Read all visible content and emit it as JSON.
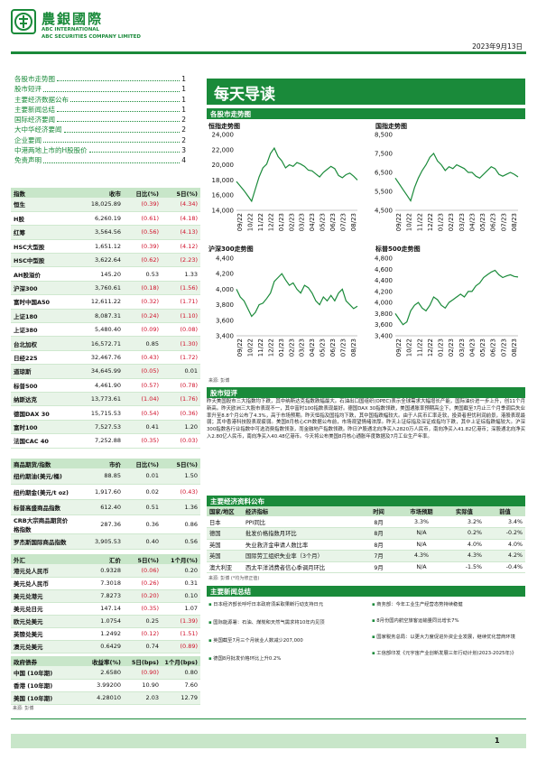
{
  "header": {
    "brand_cn": "農銀國際",
    "brand_en1": "ABC INTERNATIONAL",
    "brand_en2": "ABC SECURITIES COMPANY LIMITED",
    "date": "2023年9月13日"
  },
  "toc": [
    {
      "label": "各股市走势图",
      "page": "1"
    },
    {
      "label": "股市短评",
      "page": "1"
    },
    {
      "label": "主要经济数据公布",
      "page": "1"
    },
    {
      "label": "主要新闻总结",
      "page": "1"
    },
    {
      "label": "国际经济要闻",
      "page": "2"
    },
    {
      "label": "大中华经济要闻",
      "page": "2"
    },
    {
      "label": "企业要闻",
      "page": "2"
    },
    {
      "label": "中港两地上市的H股股价",
      "page": "3"
    },
    {
      "label": "免责声明",
      "page": "4"
    }
  ],
  "index_table": {
    "headers": [
      "指数",
      "收市",
      "日比(%)",
      "5日(%)"
    ],
    "rows": [
      [
        "恒生",
        "18,025.89",
        "(0.39)",
        "(4.34)"
      ],
      [
        "H股",
        "6,260.19",
        "(0.61)",
        "(4.18)"
      ],
      [
        "红筹",
        "3,564.56",
        "(0.56)",
        "(4.13)"
      ],
      [
        "HSC大型股",
        "1,651.12",
        "(0.39)",
        "(4.12)"
      ],
      [
        "HSC中型股",
        "3,622.64",
        "(0.62)",
        "(2.23)"
      ],
      [
        "AH股溢价",
        "145.20",
        "0.53",
        "1.33"
      ],
      [
        "沪深300",
        "3,760.61",
        "(0.18)",
        "(1.56)"
      ],
      [
        "富时中国A50",
        "12,611.22",
        "(0.32)",
        "(1.71)"
      ],
      [
        "上证180",
        "8,087.31",
        "(0.24)",
        "(1.10)"
      ],
      [
        "上证380",
        "5,480.40",
        "(0.09)",
        "(0.08)"
      ],
      [
        "台北加权",
        "16,572.71",
        "0.85",
        "(1.30)"
      ],
      [
        "日经225",
        "32,467.76",
        "(0.43)",
        "(1.72)"
      ],
      [
        "道琼斯",
        "34,645.99",
        "(0.05)",
        "0.01"
      ],
      [
        "标普500",
        "4,461.90",
        "(0.57)",
        "(0.78)"
      ],
      [
        "纳斯达克",
        "13,773.61",
        "(1.04)",
        "(1.76)"
      ],
      [
        "德国DAX 30",
        "15,715.53",
        "(0.54)",
        "(0.36)"
      ],
      [
        "富时100",
        "7,527.53",
        "0.41",
        "1.20"
      ],
      [
        "法国CAC 40",
        "7,252.88",
        "(0.35)",
        "(0.03)"
      ]
    ]
  },
  "commodity_table": {
    "headers": [
      "商品期货/指数",
      "市价",
      "日比(%)",
      "5日(%)"
    ],
    "rows": [
      [
        "纽约期油(美元/桶)",
        "88.85",
        "0.01",
        "1.50"
      ],
      [
        "纽约期金(美元/t oz)",
        "1,917.60",
        "0.02",
        "(0.43)"
      ],
      [
        "标普高盛商品指数",
        "612.40",
        "0.51",
        "1.36"
      ],
      [
        "CRB大宗商品期货价格指数",
        "287.36",
        "0.36",
        "0.86"
      ],
      [
        "罗杰斯国际商品指数",
        "3,905.53",
        "0.40",
        "0.56"
      ]
    ]
  },
  "fx_table": {
    "headers": [
      "外汇",
      "汇价",
      "5日(%)",
      "1个月(%)"
    ],
    "rows": [
      [
        "港元兑人民币",
        "0.9328",
        "(0.06)",
        "0.20"
      ],
      [
        "美元兑人民币",
        "7.3018",
        "(0.26)",
        "0.31"
      ],
      [
        "美元兑港元",
        "7.8273",
        "(0.20)",
        "0.10"
      ],
      [
        "美元兑日元",
        "147.14",
        "(0.35)",
        "1.07"
      ],
      [
        "欧元兑美元",
        "1.0754",
        "0.25",
        "(1.39)"
      ],
      [
        "英镑兑美元",
        "1.2492",
        "(0.12)",
        "(1.51)"
      ],
      [
        "澳元兑美元",
        "0.6429",
        "0.74",
        "(0.89)"
      ]
    ]
  },
  "bond_table": {
    "headers": [
      "政府债券",
      "收益率(%)",
      "5日(bps)",
      "1个月(bps)"
    ],
    "rows": [
      [
        "中国 (10年期)",
        "2.6580",
        "(0.90)",
        "0.80"
      ],
      [
        "香港 (10年期)",
        "3.99200",
        "10.90",
        "7.60"
      ],
      [
        "美国 (10年期)",
        "4.28010",
        "2.03",
        "12.79"
      ]
    ],
    "source": "来源: 彭博"
  },
  "main": {
    "title": "每天导读",
    "chart_section": "各股市走势图",
    "chart_source": "来源: 彭博",
    "market_section": "股市短评",
    "market_text": "昨天美国股市三大指数均下跌，其中纳斯达克指数跌幅最大。石油出口国组织(OPEC)表示全球需求大幅增长产能，国际油价进一步上升，创11个月新高。昨天欧洲三大股市表现不一，其中富时100指数表现最好。德国DAX 30指数领跌，美国通胀率预期高企下，美国截至7月止三个月季调后失业率升至8.8个月公布了4.3%，高于市场预期。昨天恒指及国指均下跌，其中国指跌幅较大。由于人民币汇率走软，投资者担忧利润前景，港股表现最弱；其中香港科技股表现疲弱。美国8月核心CPI数据公布前，市场观望情绪浓厚。昨天上证综指及深证成指均下跌，其中上证综指跌幅较大。沪深300指数各行业指数中可选消费指数领涨，而金融地产指数领跌。昨日沪股通北向净买入2820万人民币，南向净买入41.82亿港币；深股通北向净买入2.80亿人民币，南向净买入40.48亿港币。今天将公布美国8月核心通胀年度数据及7月工业生产年率。",
    "econ_section": "主要经济资料公布",
    "econ_table": {
      "headers": [
        "国家/地区",
        "经济指标",
        "时间",
        "市场预期",
        "实际值",
        "前值"
      ],
      "rows": [
        [
          "日本",
          "PPI同比",
          "8月",
          "3.3%",
          "3.2%",
          "3.4%"
        ],
        [
          "德国",
          "批发价格指数月环比",
          "8月",
          "N/A",
          "0.2%",
          "-0.2%"
        ],
        [
          "英国",
          "失业救济金申请人数比率",
          "8月",
          "N/A",
          "4.0%",
          "4.0%"
        ],
        [
          "英国",
          "国际劳工组织失业率（3个月）",
          "7月",
          "4.3%",
          "4.3%",
          "4.2%"
        ],
        [
          "澳大利亚",
          "西太平洋消费者信心季调月环比",
          "9月",
          "N/A",
          "-1.5%",
          "-0.4%"
        ]
      ],
      "source": "来源: 彭博 (*均为修正值)"
    },
    "news_section": "主要新闻总结",
    "news_left": [
      "日本经济部长呼吁日本政府须采取果断行动支持日元",
      "国际能源署：石油、煤炭和天然气需求将10年内见顶",
      "英国截至7月三个月就业人数减少207,000",
      "德国8月批发价格环比上升0.2%"
    ],
    "news_right": [
      "商务部：今年工业生产经营态势持续稳健",
      "8月份国内航空旅客运输量同比增长7%",
      "国家税务总局：以更大力度促进外资企业发展，继续优化营商环境",
      "工信部印发《元宇宙产业创新发展三年行动计划(2023-2025年)》"
    ]
  },
  "footer": {
    "page": "1"
  },
  "colors": {
    "brand_green": "#1a8a3a",
    "negative_red": "#d0102a",
    "table_header": "#c8e6c9"
  },
  "chart_data": [
    {
      "type": "line",
      "title": "恒指走势图",
      "ylim": [
        14000,
        24000
      ],
      "yticks": [
        "24,000",
        "22,000",
        "20,000",
        "18,000",
        "16,000",
        "14,000"
      ],
      "xticks": [
        "09/22",
        "10/22",
        "11/22",
        "12/22",
        "01/23",
        "02/23",
        "03/23",
        "04/23",
        "05/23",
        "06/23",
        "07/23",
        "08/23"
      ],
      "values": [
        17800,
        17200,
        16600,
        15900,
        15200,
        16800,
        18400,
        19600,
        20100,
        21500,
        22200,
        21100,
        20500,
        19600,
        20000,
        19800,
        20300,
        20100,
        19800,
        19300,
        19200,
        18800,
        18400,
        19000,
        19400,
        19800,
        19500,
        18600,
        18300,
        18700,
        18900,
        18500,
        18000
      ]
    },
    {
      "type": "line",
      "title": "国指走势图",
      "ylim": [
        4500,
        8500
      ],
      "yticks": [
        "8,500",
        "7,500",
        "6,500",
        "5,500",
        "4,500"
      ],
      "xticks": [
        "09/22",
        "10/22",
        "11/22",
        "12/22",
        "01/23",
        "02/23",
        "03/23",
        "04/23",
        "05/23",
        "06/23",
        "07/23",
        "08/23"
      ],
      "values": [
        6200,
        5900,
        5600,
        5300,
        5000,
        5700,
        6200,
        6600,
        6900,
        7300,
        7500,
        7100,
        6900,
        6600,
        6800,
        6700,
        6900,
        6800,
        6700,
        6500,
        6500,
        6300,
        6200,
        6400,
        6600,
        6800,
        6700,
        6400,
        6300,
        6400,
        6500,
        6400,
        6260
      ]
    },
    {
      "type": "line",
      "title": "沪深300走势图",
      "ylim": [
        3400,
        4400
      ],
      "yticks": [
        "4,400",
        "4,200",
        "4,000",
        "3,800",
        "3,600",
        "3,400"
      ],
      "xticks": [
        "09/22",
        "10/22",
        "11/22",
        "12/22",
        "01/23",
        "02/23",
        "03/23",
        "04/23",
        "05/23",
        "06/23",
        "07/23",
        "08/23"
      ],
      "values": [
        4000,
        3900,
        3850,
        3750,
        3650,
        3700,
        3800,
        3820,
        3880,
        3950,
        4100,
        4150,
        4200,
        4120,
        4050,
        4080,
        4000,
        3950,
        4050,
        4020,
        3950,
        3850,
        3800,
        3900,
        3850,
        3920,
        3850,
        3950,
        4000,
        3850,
        3800,
        3750,
        3780
      ]
    },
    {
      "type": "line",
      "title": "标普500走势图",
      "ylim": [
        3400,
        4800
      ],
      "yticks": [
        "4,800",
        "4,600",
        "4,400",
        "4,200",
        "4,000",
        "3,800",
        "3,600",
        "3,400"
      ],
      "xticks": [
        "09/22",
        "10/22",
        "11/22",
        "12/22",
        "01/23",
        "02/23",
        "03/23",
        "04/23",
        "05/23",
        "06/23",
        "07/23",
        "08/23"
      ],
      "values": [
        3800,
        3700,
        3600,
        3650,
        3850,
        3950,
        4000,
        3900,
        3850,
        3950,
        4100,
        4050,
        3950,
        3900,
        4000,
        4050,
        4100,
        4150,
        4100,
        4200,
        4200,
        4300,
        4350,
        4450,
        4500,
        4550,
        4580,
        4500,
        4450,
        4480,
        4500,
        4470,
        4460
      ]
    }
  ]
}
